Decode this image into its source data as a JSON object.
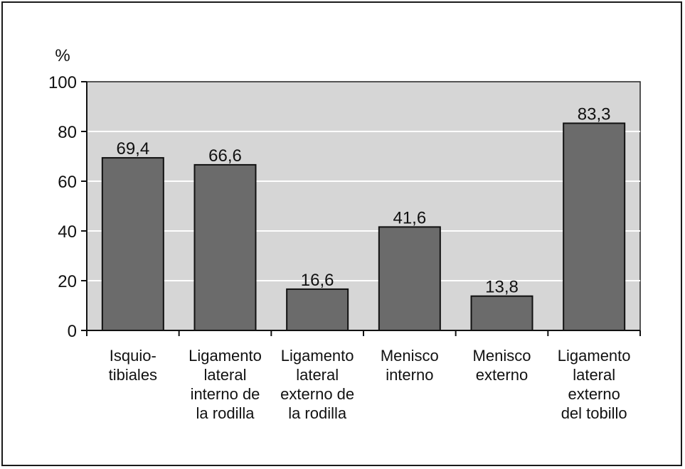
{
  "chart_data": {
    "type": "bar",
    "ylabel": "%",
    "ylim": [
      0,
      100
    ],
    "yticks": [
      0,
      20,
      40,
      60,
      80,
      100
    ],
    "grid": true,
    "legend": "none",
    "colors": {
      "plot_background": "#d6d6d6",
      "bar": "#6b6b6b",
      "bar_outline": "#111111",
      "gridline": "#ffffff"
    },
    "categories": [
      [
        "Isquio-",
        "tibiales"
      ],
      [
        "Ligamento",
        "lateral",
        "interno de",
        "la rodilla"
      ],
      [
        "Ligamento",
        "lateral",
        "externo de",
        "la rodilla"
      ],
      [
        "Menisco",
        "interno"
      ],
      [
        "Menisco",
        "externo"
      ],
      [
        "Ligamento",
        "lateral",
        "externo",
        "del tobillo"
      ]
    ],
    "values": [
      69.4,
      66.6,
      16.6,
      41.6,
      13.8,
      83.3
    ],
    "data_labels": [
      "69,4",
      "66,6",
      "16,6",
      "41,6",
      "13,8",
      "83,3"
    ]
  }
}
